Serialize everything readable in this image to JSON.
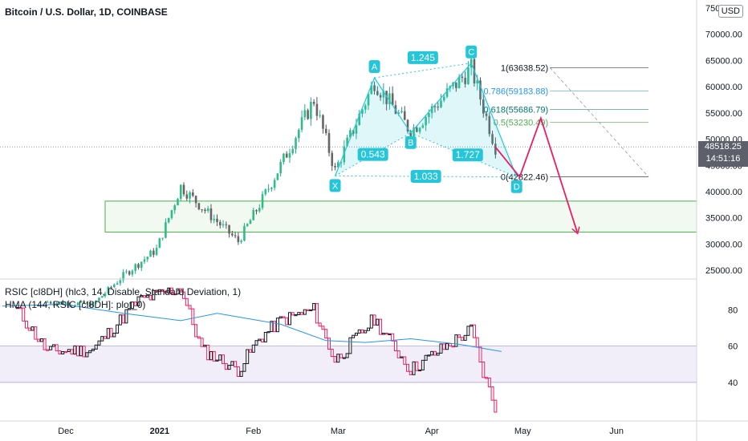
{
  "header": {
    "symbol_title": "Bitcoin / U.S. Dollar, 1D, COINBASE",
    "currency": "USD"
  },
  "indicators": {
    "rsic": "RSIC [cI8DH] (hlc3, 14, Disable, Standard Deviation, 1)",
    "hma": "HMA (144, RSIC [cI8DH]: plot_0)"
  },
  "last_price": {
    "value": "48518.25",
    "countdown": "14:51:16"
  },
  "colors": {
    "up": "#26a69a",
    "down": "#ef5350",
    "pattern": "#26c6da",
    "fib_ext": "#131722",
    "fib_786": "#2196f3",
    "fib_618": "#00796b",
    "fib_5": "#4caf50",
    "projection": "#e91e63",
    "zone": "#4caf50",
    "rsi_band": "#7e57c2",
    "hma": "#2196f3",
    "axis_text": "#131722"
  },
  "price_axis": {
    "ticks": [
      "75000.00",
      "70000.00",
      "65000.00",
      "60000.00",
      "55000.00",
      "50000.00",
      "45000.00",
      "40000.00",
      "35000.00",
      "30000.00",
      "25000.00"
    ],
    "range": [
      23500,
      75000
    ]
  },
  "rsi_axis": {
    "ticks": [
      "80",
      "60",
      "40"
    ],
    "band": [
      40,
      60
    ]
  },
  "time_axis": {
    "labels": [
      "Dec",
      "2021",
      "Feb",
      "Mar",
      "Apr",
      "May",
      "Jun"
    ]
  },
  "harmonic_pattern": {
    "points": [
      {
        "label": "X",
        "date": "2021-02-28",
        "price": 43000
      },
      {
        "label": "A",
        "date": "2021-03-13",
        "price": 61700
      },
      {
        "label": "B",
        "date": "2021-03-25",
        "price": 51200
      },
      {
        "label": "C",
        "date": "2021-04-14",
        "price": 64500
      },
      {
        "label": "D",
        "date": "2021-04-29",
        "price": 42800
      }
    ],
    "ratios": [
      "0.543",
      "1.245",
      "1.727",
      "1.033"
    ]
  },
  "fibonacci": [
    {
      "label": "1(63638.52)",
      "price": 63638.52
    },
    {
      "label": "0.786(59183.88)",
      "price": 59183.88
    },
    {
      "label": "0.618(55686.79)",
      "price": 55686.79
    },
    {
      "label": "0.5(53230.49)",
      "price": 53230.49
    },
    {
      "label": "0(42822.46)",
      "price": 42822.46
    }
  ],
  "support_zone": {
    "top": 38200,
    "bottom": 32300
  },
  "projection_path": [
    {
      "date": "2021-04-22",
      "price": 48500
    },
    {
      "date": "2021-04-30",
      "price": 42800
    },
    {
      "date": "2021-05-07",
      "price": 54000
    },
    {
      "date": "2021-05-19",
      "price": 32300
    }
  ],
  "chart_data": {
    "type": "candlestick",
    "title": "Bitcoin / U.S. Dollar, 1D, COINBASE",
    "close_series": [
      {
        "date": "2020-11-25",
        "close": 19000
      },
      {
        "date": "2020-12-10",
        "close": 18500
      },
      {
        "date": "2020-12-20",
        "close": 24000
      },
      {
        "date": "2020-12-31",
        "close": 29000
      },
      {
        "date": "2021-01-08",
        "close": 41000
      },
      {
        "date": "2021-01-15",
        "close": 37000
      },
      {
        "date": "2021-01-27",
        "close": 30500
      },
      {
        "date": "2021-02-03",
        "close": 37500
      },
      {
        "date": "2021-02-10",
        "close": 45000
      },
      {
        "date": "2021-02-21",
        "close": 57500
      },
      {
        "date": "2021-02-28",
        "close": 44000
      },
      {
        "date": "2021-03-13",
        "close": 61000
      },
      {
        "date": "2021-03-25",
        "close": 51500
      },
      {
        "date": "2021-04-14",
        "close": 63500
      },
      {
        "date": "2021-04-22",
        "close": 48500
      }
    ],
    "rsi_series": [
      {
        "date": "2020-11-15",
        "rsi": 80
      },
      {
        "date": "2020-11-25",
        "rsi": 57
      },
      {
        "date": "2020-12-10",
        "rsi": 58
      },
      {
        "date": "2020-12-25",
        "rsi": 85
      },
      {
        "date": "2021-01-08",
        "rsi": 92
      },
      {
        "date": "2021-01-15",
        "rsi": 58
      },
      {
        "date": "2021-01-27",
        "rsi": 47
      },
      {
        "date": "2021-02-03",
        "rsi": 64
      },
      {
        "date": "2021-02-10",
        "rsi": 74
      },
      {
        "date": "2021-02-21",
        "rsi": 80
      },
      {
        "date": "2021-02-28",
        "rsi": 52
      },
      {
        "date": "2021-03-13",
        "rsi": 75
      },
      {
        "date": "2021-03-25",
        "rsi": 47
      },
      {
        "date": "2021-04-14",
        "rsi": 69
      },
      {
        "date": "2021-04-18",
        "rsi": 45
      },
      {
        "date": "2021-04-22",
        "rsi": 27
      }
    ],
    "hma_series": [
      {
        "date": "2020-11-10",
        "rsi": 82
      },
      {
        "date": "2020-11-30",
        "rsi": 83
      },
      {
        "date": "2020-12-20",
        "rsi": 78
      },
      {
        "date": "2021-01-08",
        "rsi": 74
      },
      {
        "date": "2021-01-20",
        "rsi": 78
      },
      {
        "date": "2021-02-10",
        "rsi": 72
      },
      {
        "date": "2021-02-25",
        "rsi": 63
      },
      {
        "date": "2021-03-10",
        "rsi": 62
      },
      {
        "date": "2021-03-25",
        "rsi": 64
      },
      {
        "date": "2021-04-10",
        "rsi": 61
      },
      {
        "date": "2021-04-24",
        "rsi": 57
      }
    ],
    "price_range": [
      23500,
      75000
    ],
    "rsi_range": [
      21,
      96
    ]
  }
}
